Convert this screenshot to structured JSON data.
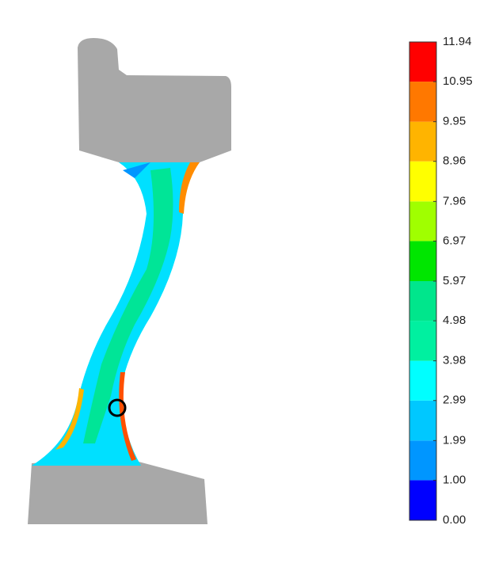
{
  "chart_data": {
    "type": "contour",
    "colorbar": {
      "lim": [
        0,
        11.94
      ],
      "ticks": [
        {
          "value": 0,
          "label": "0.00"
        },
        {
          "value": 1,
          "label": "1.00"
        },
        1.99,
        2.99,
        3.98,
        4.98,
        5.97,
        6.97,
        7.96,
        8.96,
        9.95,
        10.95,
        11.94
      ],
      "colors": [
        "#0000ff",
        "#0096ff",
        "#00c8ff",
        "#00ffff",
        "#00f0a0",
        "#00e68c",
        "#00e600",
        "#a0ff00",
        "#ffff00",
        "#ffb400",
        "#ff7800",
        "#ff0000"
      ]
    }
  }
}
